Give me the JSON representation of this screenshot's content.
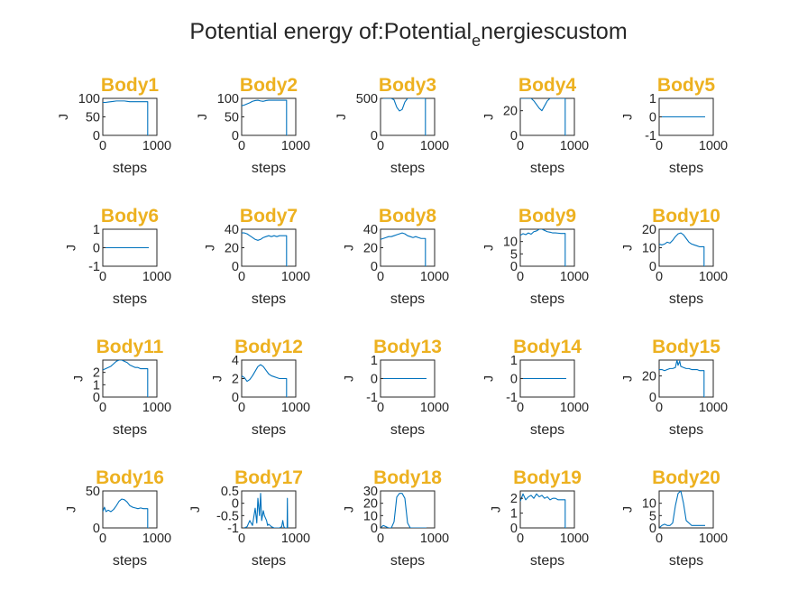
{
  "figure": {
    "title_main": "Potential energy of:Potential",
    "title_sub": "e",
    "title_rest": "nergiescustom",
    "line_color": "#0072BD",
    "title_color": "#EDB120"
  },
  "chart_data": [
    {
      "type": "line",
      "title": "Body1",
      "xlabel": "steps",
      "ylabel": "J",
      "xlim": [
        0,
        1000
      ],
      "ylim": [
        0,
        100
      ],
      "xticks": [
        "0",
        "1000"
      ],
      "yticks": [
        "0",
        "50",
        "100"
      ],
      "x": [
        0,
        50,
        100,
        150,
        200,
        250,
        300,
        350,
        400,
        450,
        500,
        550,
        600,
        650,
        700,
        750,
        800,
        830,
        830,
        850
      ],
      "y": [
        89,
        89,
        90,
        91,
        92,
        93,
        93,
        93,
        93,
        92,
        91,
        91,
        91,
        91,
        91,
        91,
        91,
        91,
        0,
        0
      ]
    },
    {
      "type": "line",
      "title": "Body2",
      "xlabel": "steps",
      "ylabel": "J",
      "xlim": [
        0,
        1000
      ],
      "ylim": [
        0,
        100
      ],
      "xticks": [
        "0",
        "1000"
      ],
      "yticks": [
        "0",
        "50",
        "100"
      ],
      "x": [
        0,
        50,
        100,
        150,
        200,
        250,
        300,
        350,
        400,
        450,
        500,
        550,
        600,
        650,
        700,
        750,
        800,
        830,
        830,
        850
      ],
      "y": [
        80,
        82,
        85,
        88,
        92,
        94,
        95,
        93,
        92,
        94,
        95,
        95,
        95,
        95,
        95,
        95,
        95,
        95,
        0,
        0
      ]
    },
    {
      "type": "line",
      "title": "Body3",
      "xlabel": "steps",
      "ylabel": "J",
      "xlim": [
        0,
        1000
      ],
      "ylim": [
        0,
        500
      ],
      "xticks": [
        "0",
        "1000"
      ],
      "yticks": [
        "0",
        "500"
      ],
      "x": [
        0,
        100,
        200,
        250,
        300,
        350,
        400,
        450,
        500,
        550,
        600,
        700,
        800,
        830,
        830,
        850
      ],
      "y": [
        500,
        500,
        500,
        480,
        380,
        330,
        350,
        450,
        500,
        500,
        500,
        500,
        500,
        500,
        0,
        0
      ]
    },
    {
      "type": "line",
      "title": "Body4",
      "xlabel": "steps",
      "ylabel": "J",
      "xlim": [
        0,
        1000
      ],
      "ylim": [
        0,
        30
      ],
      "xticks": [
        "0",
        "1000"
      ],
      "yticks": [
        "0",
        "20"
      ],
      "x": [
        0,
        100,
        200,
        250,
        300,
        350,
        400,
        450,
        500,
        550,
        600,
        700,
        800,
        830,
        830,
        850
      ],
      "y": [
        30,
        30,
        30,
        28,
        25,
        22,
        20,
        24,
        28,
        30,
        30,
        30,
        30,
        30,
        0,
        0
      ]
    },
    {
      "type": "line",
      "title": "Body5",
      "xlabel": "steps",
      "ylabel": "J",
      "xlim": [
        0,
        1000
      ],
      "ylim": [
        -1,
        1
      ],
      "xticks": [
        "0",
        "1000"
      ],
      "yticks": [
        "-1",
        "0",
        "1"
      ],
      "x": [
        0,
        850
      ],
      "y": [
        0,
        0
      ]
    },
    {
      "type": "line",
      "title": "Body6",
      "xlabel": "steps",
      "ylabel": "J",
      "xlim": [
        0,
        1000
      ],
      "ylim": [
        -1,
        1
      ],
      "xticks": [
        "0",
        "1000"
      ],
      "yticks": [
        "-1",
        "0",
        "1"
      ],
      "x": [
        0,
        850
      ],
      "y": [
        0,
        0
      ]
    },
    {
      "type": "line",
      "title": "Body7",
      "xlabel": "steps",
      "ylabel": "J",
      "xlim": [
        0,
        1000
      ],
      "ylim": [
        0,
        40
      ],
      "xticks": [
        "0",
        "1000"
      ],
      "yticks": [
        "0",
        "20",
        "40"
      ],
      "x": [
        0,
        50,
        100,
        150,
        200,
        250,
        300,
        350,
        400,
        450,
        500,
        550,
        600,
        650,
        700,
        750,
        800,
        830,
        830,
        850
      ],
      "y": [
        36,
        36,
        35,
        33,
        31,
        29,
        28,
        29,
        31,
        32,
        33,
        32,
        33,
        32,
        33,
        33,
        33,
        33,
        0,
        0
      ]
    },
    {
      "type": "line",
      "title": "Body8",
      "xlabel": "steps",
      "ylabel": "J",
      "xlim": [
        0,
        1000
      ],
      "ylim": [
        0,
        40
      ],
      "xticks": [
        "0",
        "1000"
      ],
      "yticks": [
        "0",
        "20",
        "40"
      ],
      "x": [
        0,
        50,
        100,
        150,
        200,
        250,
        300,
        350,
        400,
        450,
        500,
        550,
        600,
        650,
        700,
        750,
        800,
        830,
        830,
        850
      ],
      "y": [
        29,
        30,
        31,
        32,
        32,
        33,
        34,
        35,
        36,
        35,
        33,
        32,
        31,
        32,
        31,
        30,
        30,
        30,
        0,
        0
      ]
    },
    {
      "type": "line",
      "title": "Body9",
      "xlabel": "steps",
      "ylabel": "J",
      "xlim": [
        0,
        1000
      ],
      "ylim": [
        0,
        15
      ],
      "xticks": [
        "0",
        "1000"
      ],
      "yticks": [
        "0",
        "5",
        "10"
      ],
      "x": [
        0,
        50,
        100,
        150,
        200,
        250,
        300,
        350,
        400,
        450,
        500,
        550,
        600,
        650,
        700,
        750,
        800,
        830,
        830,
        850
      ],
      "y": [
        12.5,
        13.2,
        12.8,
        13.5,
        13,
        14,
        14.3,
        15,
        15,
        14.5,
        14,
        13.8,
        13.5,
        13.5,
        13.4,
        13.3,
        13.3,
        13.3,
        0,
        0
      ]
    },
    {
      "type": "line",
      "title": "Body10",
      "xlabel": "steps",
      "ylabel": "J",
      "xlim": [
        0,
        1000
      ],
      "ylim": [
        0,
        20
      ],
      "xticks": [
        "0",
        "1000"
      ],
      "yticks": [
        "0",
        "10",
        "20"
      ],
      "x": [
        0,
        50,
        100,
        150,
        200,
        250,
        300,
        350,
        400,
        450,
        500,
        550,
        600,
        650,
        700,
        750,
        800,
        830,
        830,
        850
      ],
      "y": [
        12,
        11.5,
        12,
        13,
        12.5,
        14,
        16,
        17.5,
        18,
        17,
        15,
        13,
        12,
        11.5,
        11,
        10.5,
        10.5,
        10.5,
        0,
        0
      ]
    },
    {
      "type": "line",
      "title": "Body11",
      "xlabel": "steps",
      "ylabel": "J",
      "xlim": [
        0,
        1000
      ],
      "ylim": [
        0,
        3
      ],
      "xticks": [
        "0",
        "1000"
      ],
      "yticks": [
        "0",
        "1",
        "2"
      ],
      "x": [
        0,
        50,
        100,
        150,
        200,
        250,
        300,
        350,
        400,
        450,
        500,
        550,
        600,
        650,
        700,
        750,
        800,
        830,
        830,
        850
      ],
      "y": [
        2.2,
        2.3,
        2.4,
        2.5,
        2.7,
        2.9,
        3,
        3,
        2.9,
        2.8,
        2.6,
        2.5,
        2.4,
        2.4,
        2.3,
        2.3,
        2.3,
        2.3,
        0,
        0
      ]
    },
    {
      "type": "line",
      "title": "Body12",
      "xlabel": "steps",
      "ylabel": "J",
      "xlim": [
        0,
        1000
      ],
      "ylim": [
        0,
        4
      ],
      "xticks": [
        "0",
        "1000"
      ],
      "yticks": [
        "0",
        "2",
        "4"
      ],
      "x": [
        0,
        50,
        100,
        150,
        200,
        250,
        300,
        350,
        400,
        450,
        500,
        550,
        600,
        650,
        700,
        750,
        800,
        830,
        830,
        850
      ],
      "y": [
        2.3,
        2.1,
        1.7,
        1.9,
        2.3,
        2.8,
        3.3,
        3.5,
        3.3,
        2.9,
        2.5,
        2.3,
        2.2,
        2.1,
        2,
        2,
        2,
        2,
        0,
        0
      ]
    },
    {
      "type": "line",
      "title": "Body13",
      "xlabel": "steps",
      "ylabel": "J",
      "xlim": [
        0,
        1000
      ],
      "ylim": [
        -1,
        1
      ],
      "xticks": [
        "0",
        "1000"
      ],
      "yticks": [
        "-1",
        "0",
        "1"
      ],
      "x": [
        0,
        850
      ],
      "y": [
        0,
        0
      ]
    },
    {
      "type": "line",
      "title": "Body14",
      "xlabel": "steps",
      "ylabel": "J",
      "xlim": [
        0,
        1000
      ],
      "ylim": [
        -1,
        1
      ],
      "xticks": [
        "0",
        "1000"
      ],
      "yticks": [
        "-1",
        "0",
        "1"
      ],
      "x": [
        0,
        850
      ],
      "y": [
        0,
        0
      ]
    },
    {
      "type": "line",
      "title": "Body15",
      "xlabel": "steps",
      "ylabel": "J",
      "xlim": [
        0,
        1000
      ],
      "ylim": [
        0,
        35
      ],
      "xticks": [
        "0",
        "1000"
      ],
      "yticks": [
        "0",
        "20"
      ],
      "x": [
        0,
        50,
        100,
        150,
        200,
        250,
        300,
        330,
        350,
        380,
        400,
        450,
        500,
        550,
        600,
        650,
        700,
        750,
        800,
        830,
        830,
        850
      ],
      "y": [
        26,
        26,
        25,
        26,
        27,
        27,
        28,
        35,
        30,
        34,
        29,
        28,
        27,
        27,
        26,
        26,
        26,
        25,
        25,
        25,
        0,
        0
      ]
    },
    {
      "type": "line",
      "title": "Body16",
      "xlabel": "steps",
      "ylabel": "J",
      "xlim": [
        0,
        1000
      ],
      "ylim": [
        0,
        50
      ],
      "xticks": [
        "0",
        "1000"
      ],
      "yticks": [
        "0",
        "50"
      ],
      "x": [
        0,
        30,
        60,
        100,
        150,
        200,
        250,
        300,
        350,
        400,
        450,
        500,
        550,
        600,
        650,
        700,
        750,
        800,
        830,
        830,
        850
      ],
      "y": [
        22,
        28,
        22,
        24,
        22,
        25,
        30,
        36,
        39,
        38,
        35,
        30,
        28,
        27,
        26,
        27,
        26,
        26,
        26,
        0,
        0
      ]
    },
    {
      "type": "line",
      "title": "Body17",
      "xlabel": "steps",
      "ylabel": "J",
      "xlim": [
        0,
        1000
      ],
      "ylim": [
        -1,
        0.5
      ],
      "xticks": [
        "0",
        "1000"
      ],
      "yticks": [
        "-1",
        "-0.5",
        "0",
        "0.5"
      ],
      "x": [
        0,
        50,
        100,
        150,
        200,
        250,
        280,
        300,
        330,
        350,
        370,
        400,
        420,
        440,
        460,
        480,
        500,
        550,
        600,
        650,
        700,
        740,
        760,
        780,
        800,
        820,
        840,
        845,
        850
      ],
      "y": [
        -1,
        -1,
        -0.95,
        -0.7,
        -0.9,
        -0.2,
        -0.8,
        0.2,
        -0.5,
        0.4,
        -0.7,
        -0.3,
        -0.5,
        -0.6,
        -0.7,
        -0.9,
        -0.85,
        -0.95,
        -1,
        -1,
        -1,
        -0.95,
        -0.7,
        -0.95,
        -1,
        -1,
        -1,
        0.2,
        -1
      ]
    },
    {
      "type": "line",
      "title": "Body18",
      "xlabel": "steps",
      "ylabel": "J",
      "xlim": [
        0,
        1000
      ],
      "ylim": [
        0,
        30
      ],
      "xticks": [
        "0",
        "1000"
      ],
      "yticks": [
        "0",
        "10",
        "20",
        "30"
      ],
      "x": [
        0,
        50,
        100,
        150,
        200,
        250,
        300,
        350,
        400,
        450,
        500,
        550,
        600,
        650,
        700,
        750,
        800,
        850
      ],
      "y": [
        0,
        2,
        1,
        0,
        0,
        5,
        25,
        28,
        28,
        24,
        4,
        0,
        0,
        0,
        0,
        0,
        0,
        0
      ]
    },
    {
      "type": "line",
      "title": "Body19",
      "xlabel": "steps",
      "ylabel": "J",
      "xlim": [
        0,
        1000
      ],
      "ylim": [
        0,
        2.5
      ],
      "xticks": [
        "0",
        "1000"
      ],
      "yticks": [
        "0",
        "1",
        "2"
      ],
      "x": [
        0,
        50,
        100,
        150,
        200,
        250,
        300,
        350,
        400,
        450,
        500,
        550,
        600,
        650,
        700,
        750,
        800,
        830,
        830,
        850
      ],
      "y": [
        1.8,
        2.3,
        1.9,
        2.1,
        2.2,
        2,
        2.3,
        2.1,
        2.2,
        2,
        2.1,
        1.9,
        2,
        2,
        1.9,
        1.9,
        1.9,
        1.9,
        0,
        0
      ]
    },
    {
      "type": "line",
      "title": "Body20",
      "xlabel": "steps",
      "ylabel": "J",
      "xlim": [
        0,
        1000
      ],
      "ylim": [
        0,
        15
      ],
      "xticks": [
        "0",
        "1000"
      ],
      "yticks": [
        "0",
        "5",
        "10"
      ],
      "x": [
        0,
        50,
        100,
        150,
        200,
        250,
        300,
        350,
        400,
        450,
        500,
        550,
        600,
        650,
        700,
        750,
        800,
        850
      ],
      "y": [
        0,
        1,
        1.5,
        1,
        1,
        2,
        9,
        14,
        15,
        10,
        3,
        2,
        1,
        1,
        1,
        1,
        1,
        1
      ]
    }
  ]
}
